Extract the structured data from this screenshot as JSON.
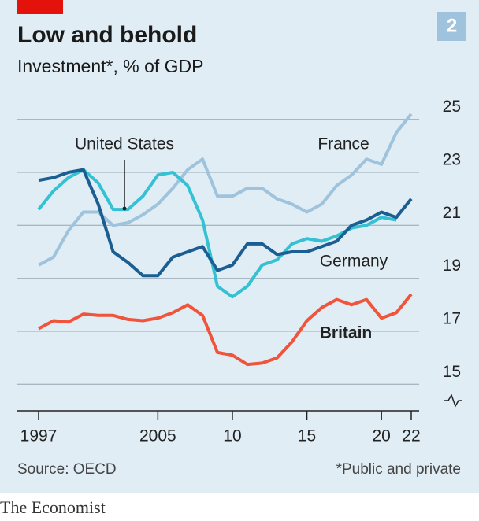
{
  "chart_data": {
    "type": "line",
    "title": "Low and behold",
    "subtitle": "Investment*, % of GDP",
    "badge": "2",
    "source": "Source: OECD",
    "note": "*Public and private",
    "brand": "The Economist",
    "x": [
      1997,
      1998,
      1999,
      2000,
      2001,
      2002,
      2003,
      2004,
      2005,
      2006,
      2007,
      2008,
      2009,
      2010,
      2011,
      2012,
      2013,
      2014,
      2015,
      2016,
      2017,
      2018,
      2019,
      2020,
      2021,
      2022
    ],
    "series": [
      {
        "name": "France",
        "color": "#9fc3dc",
        "values": [
          19.5,
          19.8,
          20.8,
          21.5,
          21.5,
          21.0,
          21.1,
          21.4,
          21.8,
          22.4,
          23.1,
          23.5,
          22.1,
          22.1,
          22.4,
          22.4,
          22.0,
          21.8,
          21.5,
          21.8,
          22.5,
          22.9,
          23.5,
          23.3,
          24.5,
          25.2
        ]
      },
      {
        "name": "United States",
        "color": "#33c1d3",
        "values": [
          21.6,
          22.3,
          22.8,
          23.1,
          22.6,
          21.6,
          21.6,
          22.1,
          22.9,
          23.0,
          22.5,
          21.2,
          18.7,
          18.3,
          18.7,
          19.5,
          19.7,
          20.3,
          20.5,
          20.4,
          20.6,
          20.9,
          21.0,
          21.3,
          21.2,
          null
        ]
      },
      {
        "name": "Germany",
        "color": "#1b5e92",
        "values": [
          22.7,
          22.8,
          23.0,
          23.1,
          21.8,
          20.0,
          19.6,
          19.1,
          19.1,
          19.8,
          20.0,
          20.2,
          19.3,
          19.5,
          20.3,
          20.3,
          19.9,
          20.0,
          20.0,
          20.2,
          20.4,
          21.0,
          21.2,
          21.5,
          21.3,
          22.0
        ]
      },
      {
        "name": "Britain",
        "color": "#f0543a",
        "values": [
          17.1,
          17.4,
          17.35,
          17.65,
          17.6,
          17.6,
          17.45,
          17.4,
          17.5,
          17.7,
          18.0,
          17.6,
          16.2,
          16.1,
          15.75,
          15.8,
          16.0,
          16.6,
          17.4,
          17.9,
          18.2,
          18.0,
          18.2,
          17.5,
          17.7,
          18.4
        ]
      }
    ],
    "xlim": [
      1997,
      2022
    ],
    "xticks": [
      {
        "value": 1997,
        "label": "1997"
      },
      2005,
      {
        "value": 2010,
        "label": "10"
      },
      {
        "value": 2015,
        "label": "15"
      },
      {
        "value": 2020,
        "label": "20"
      },
      {
        "value": 2022,
        "label": "22"
      }
    ],
    "ylim": [
      14,
      26
    ],
    "yticks": [
      15,
      17,
      19,
      21,
      23,
      25
    ],
    "grid": true
  }
}
